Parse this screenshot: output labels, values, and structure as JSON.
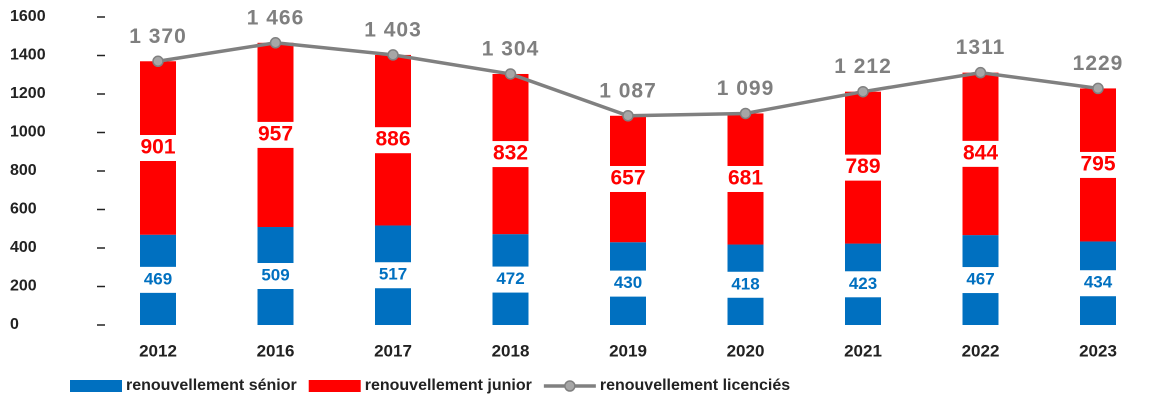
{
  "chart_data": {
    "type": "bar",
    "stacked": true,
    "categories": [
      "2012",
      "2016",
      "2017",
      "2018",
      "2019",
      "2020",
      "2021",
      "2022",
      "2023"
    ],
    "series": [
      {
        "name": "renouvellement sénior",
        "type": "bar",
        "color": "#0070c0",
        "values": [
          469,
          509,
          517,
          472,
          430,
          418,
          423,
          467,
          434
        ]
      },
      {
        "name": "renouvellement junior",
        "type": "bar",
        "color": "#ff0000",
        "values": [
          901,
          957,
          886,
          832,
          657,
          681,
          789,
          844,
          795
        ]
      },
      {
        "name": "renouvellement licenciés",
        "type": "line",
        "color": "#808080",
        "values": [
          1370,
          1466,
          1403,
          1304,
          1087,
          1099,
          1212,
          1311,
          1229
        ],
        "value_labels": [
          "1 370",
          "1 466",
          "1 403",
          "1 304",
          "1 087",
          "1 099",
          "1 212",
          "1311",
          "1229"
        ]
      }
    ],
    "ylim": [
      0,
      1600
    ],
    "yticks": [
      0,
      200,
      400,
      600,
      800,
      1000,
      1200,
      1400,
      1600
    ],
    "grid": false,
    "legend": "bottom"
  }
}
